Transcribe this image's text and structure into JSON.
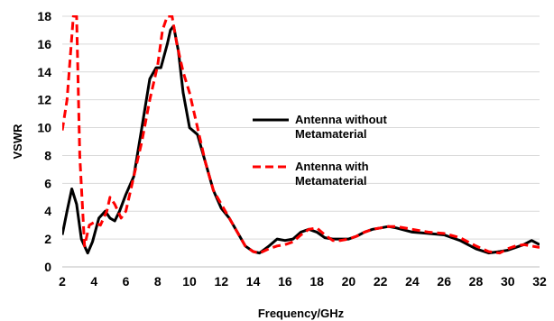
{
  "chart_data": {
    "type": "line",
    "title": "",
    "xlabel": "Frequency/GHz",
    "ylabel": "VSWR",
    "xlim": [
      2,
      32
    ],
    "ylim": [
      0,
      18
    ],
    "xticks": [
      2,
      4,
      6,
      8,
      10,
      12,
      14,
      16,
      18,
      20,
      22,
      24,
      26,
      28,
      30,
      32
    ],
    "yticks": [
      0,
      2,
      4,
      6,
      8,
      10,
      12,
      14,
      16,
      18
    ],
    "grid": "horizontal major gridlines",
    "legend_position": "right-center",
    "series": [
      {
        "name": "Antenna without Metamaterial",
        "color": "#000000",
        "line_style": "solid",
        "x": [
          2.0,
          2.3,
          2.6,
          2.9,
          3.2,
          3.6,
          3.9,
          4.3,
          4.7,
          5.0,
          5.3,
          5.6,
          6.0,
          6.5,
          7.0,
          7.5,
          7.9,
          8.2,
          8.6,
          8.8,
          9.0,
          9.3,
          9.6,
          10.0,
          10.5,
          11.0,
          11.5,
          12.0,
          12.5,
          13.0,
          13.5,
          14.0,
          14.4,
          15.0,
          15.5,
          16.0,
          16.5,
          17.0,
          17.5,
          18.0,
          18.5,
          19.0,
          19.5,
          20.0,
          20.5,
          21.0,
          21.5,
          22.0,
          22.5,
          23.0,
          24.0,
          25.0,
          26.0,
          27.0,
          28.0,
          28.8,
          29.5,
          30.0,
          30.5,
          31.0,
          31.5,
          32.0
        ],
        "y": [
          2.3,
          4.0,
          5.6,
          4.5,
          2.0,
          1.0,
          1.8,
          3.5,
          4.0,
          3.5,
          3.3,
          4.0,
          5.2,
          6.5,
          10.0,
          13.5,
          14.3,
          14.3,
          16.0,
          17.0,
          17.3,
          15.5,
          12.5,
          10.0,
          9.5,
          7.5,
          5.5,
          4.2,
          3.5,
          2.5,
          1.5,
          1.1,
          1.0,
          1.5,
          2.0,
          1.9,
          2.0,
          2.5,
          2.7,
          2.5,
          2.1,
          2.0,
          2.0,
          2.0,
          2.2,
          2.5,
          2.7,
          2.8,
          2.9,
          2.8,
          2.5,
          2.4,
          2.3,
          1.9,
          1.3,
          1.0,
          1.1,
          1.2,
          1.4,
          1.6,
          1.9,
          1.6
        ]
      },
      {
        "name": "Antenna with Metamaterial",
        "color": "#ff0000",
        "line_style": "dashed",
        "x": [
          2.0,
          2.3,
          2.5,
          2.7,
          2.9,
          3.1,
          3.4,
          3.7,
          4.0,
          4.4,
          4.8,
          5.0,
          5.3,
          5.7,
          6.0,
          6.5,
          7.0,
          7.5,
          8.0,
          8.3,
          8.6,
          8.9,
          9.2,
          9.6,
          10.0,
          10.5,
          11.0,
          11.5,
          12.0,
          12.5,
          13.0,
          13.5,
          14.0,
          14.4,
          15.0,
          15.5,
          16.0,
          16.5,
          17.0,
          17.5,
          18.0,
          18.5,
          19.0,
          19.5,
          20.0,
          20.5,
          21.0,
          21.5,
          22.0,
          22.5,
          23.0,
          24.0,
          25.0,
          26.0,
          27.0,
          28.0,
          28.8,
          29.5,
          30.0,
          30.5,
          31.0,
          31.5,
          32.0
        ],
        "y": [
          9.8,
          12.0,
          15.0,
          18.0,
          18.0,
          8.0,
          1.5,
          3.0,
          3.2,
          3.0,
          4.0,
          5.0,
          4.5,
          3.5,
          4.0,
          6.5,
          9.0,
          12.0,
          14.5,
          17.0,
          18.0,
          18.0,
          16.0,
          14.0,
          12.5,
          10.0,
          7.5,
          5.5,
          4.5,
          3.5,
          2.5,
          1.5,
          1.1,
          1.0,
          1.3,
          1.5,
          1.6,
          1.8,
          2.3,
          2.7,
          2.8,
          2.3,
          1.9,
          1.9,
          2.0,
          2.2,
          2.5,
          2.7,
          2.8,
          2.9,
          2.9,
          2.7,
          2.5,
          2.4,
          2.1,
          1.5,
          1.1,
          1.0,
          1.3,
          1.5,
          1.6,
          1.5,
          1.4
        ]
      }
    ]
  }
}
